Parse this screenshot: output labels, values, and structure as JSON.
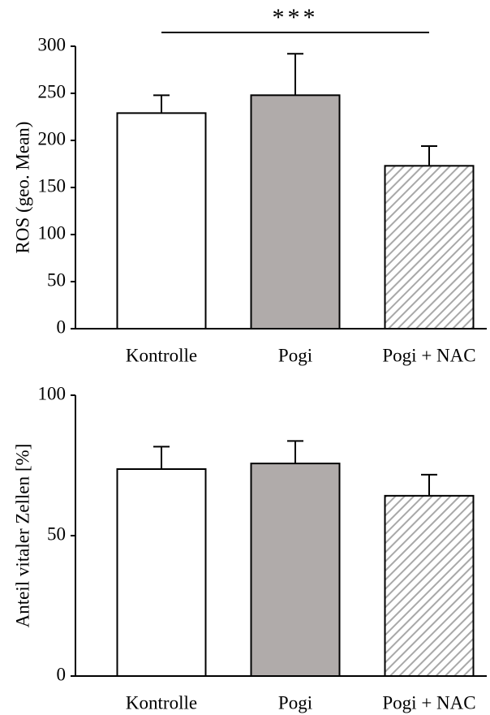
{
  "chart_data": [
    {
      "type": "bar",
      "y_label": "ROS (geo. Mean)",
      "categories": [
        "Kontrolle",
        "Pogi",
        "Pogi + NAC"
      ],
      "values": [
        229,
        248,
        173
      ],
      "errors": [
        19,
        44,
        21
      ],
      "colors": [
        "#ffffff",
        "#b0abaa",
        "#b8b8b8"
      ],
      "hatch": [
        false,
        false,
        true
      ],
      "ylim": [
        0,
        300
      ],
      "yticks": [
        0,
        50,
        100,
        150,
        200,
        250,
        300
      ],
      "annotation": "***"
    },
    {
      "type": "bar",
      "y_label": "Anteil vitaler Zellen [%]",
      "categories": [
        "Kontrolle",
        "Pogi",
        "Pogi + NAC"
      ],
      "values": [
        73.7,
        75.7,
        64.2
      ],
      "errors": [
        8,
        8,
        7.5
      ],
      "colors": [
        "#ffffff",
        "#b0abaa",
        "#b8b8b8"
      ],
      "hatch": [
        false,
        false,
        true
      ],
      "ylim": [
        0,
        100
      ],
      "yticks": [
        0,
        50,
        100
      ]
    }
  ]
}
